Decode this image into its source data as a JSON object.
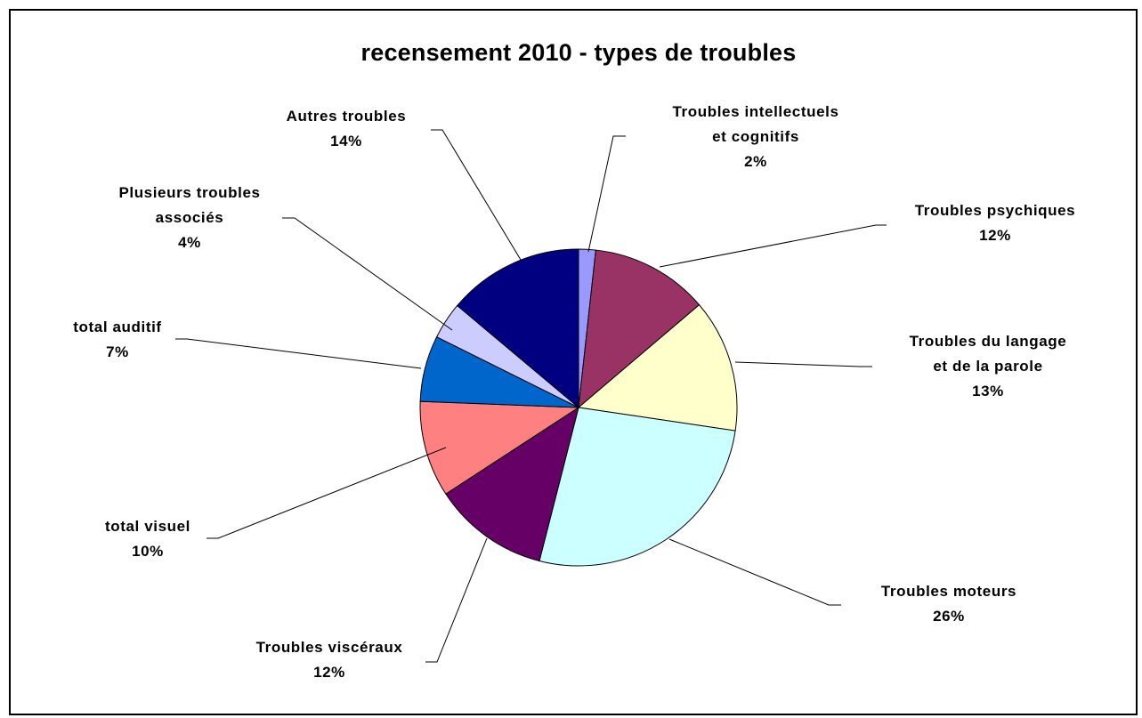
{
  "chart_data": {
    "type": "pie",
    "title": "recensement 2010 - types de troubles",
    "slices": [
      {
        "label": [
          "Troubles intellectuels",
          "et cognitifs"
        ],
        "percent_label": "2%",
        "value": 1.7,
        "color": "#9999ff"
      },
      {
        "label": [
          "Troubles psychiques"
        ],
        "percent_label": "12%",
        "value": 11.8,
        "color": "#993366"
      },
      {
        "label": [
          "Troubles du langage",
          "et de la parole"
        ],
        "percent_label": "13%",
        "value": 13.3,
        "color": "#ffffcc"
      },
      {
        "label": [
          "Troubles moteurs"
        ],
        "percent_label": "26%",
        "value": 26.1,
        "color": "#ccffff"
      },
      {
        "label": [
          "Troubles viscéraux"
        ],
        "percent_label": "12%",
        "value": 11.6,
        "color": "#660066"
      },
      {
        "label": [
          "total visuel"
        ],
        "percent_label": "10%",
        "value": 9.6,
        "color": "#ff8080"
      },
      {
        "label": [
          "total auditif"
        ],
        "percent_label": "7%",
        "value": 6.6,
        "color": "#0066cc"
      },
      {
        "label": [
          "Plusieurs troubles",
          "associés"
        ],
        "percent_label": "4%",
        "value": 3.7,
        "color": "#ccccff"
      },
      {
        "label": [
          "Autres troubles"
        ],
        "percent_label": "14%",
        "value": 13.6,
        "color": "#000080"
      }
    ],
    "start": "top",
    "direction": "clockwise",
    "legend": "none",
    "data_labels": "category name and percentage, outside with leader lines"
  }
}
